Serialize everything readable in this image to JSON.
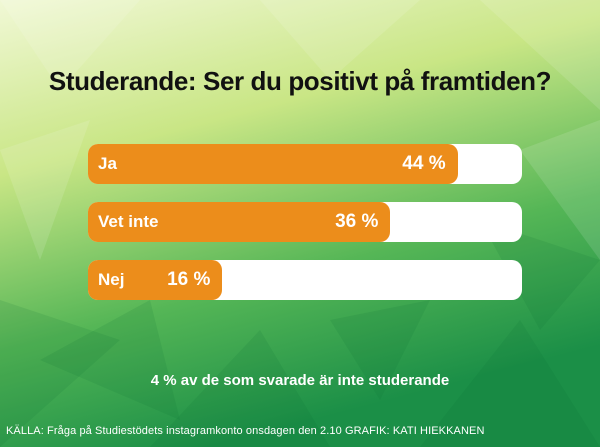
{
  "colors": {
    "accent": "#ec8d1b",
    "track": "#ffffff",
    "bg_light": "#e9f5c8",
    "bg_dark": "#1f9a4c"
  },
  "chart_data": {
    "type": "bar",
    "orientation": "horizontal",
    "title": "Studerande: Ser du positivt på framtiden?",
    "categories": [
      "Ja",
      "Vet inte",
      "Nej"
    ],
    "values": [
      44,
      36,
      16
    ],
    "value_labels": [
      "44 %",
      "36 %",
      "16 %"
    ],
    "unit": "%"
  },
  "note": "4 % av de som svarade är inte studerande",
  "source": "KÄLLA: Fråga på Studiestödets instagramkonto onsdagen den 2.10 GRAFIK: KATI HIEKKANEN"
}
